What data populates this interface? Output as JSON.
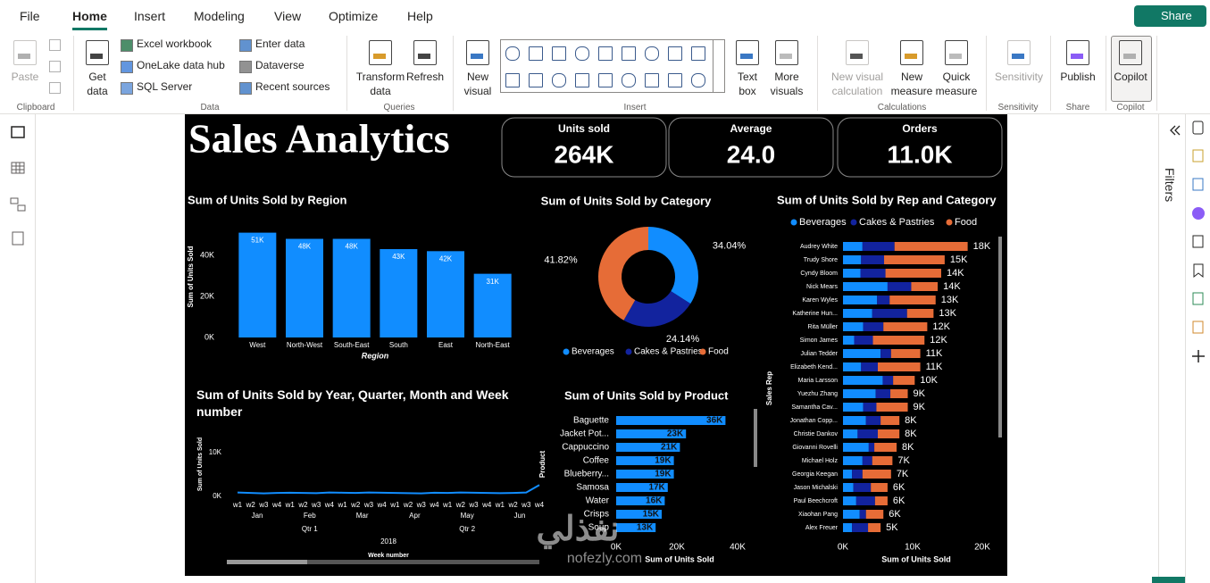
{
  "menu": {
    "tabs": [
      "File",
      "Home",
      "Insert",
      "Modeling",
      "View",
      "Optimize",
      "Help"
    ],
    "share": "Share"
  },
  "ribbon": {
    "groups": [
      {
        "name": "Clipboard",
        "buttons": [
          "Paste"
        ]
      },
      {
        "name": "Data",
        "buttons": [
          "Get data",
          "Excel workbook",
          "OneLake data hub",
          "SQL Server",
          "Enter data",
          "Dataverse",
          "Recent sources"
        ]
      },
      {
        "name": "Queries",
        "buttons": [
          "Transform data",
          "Refresh"
        ]
      },
      {
        "name": "Insert",
        "buttons": [
          "New visual",
          "Text box",
          "More visuals"
        ]
      },
      {
        "name": "Calculations",
        "buttons": [
          "New visual calculation",
          "New measure",
          "Quick measure"
        ]
      },
      {
        "name": "Sensitivity",
        "buttons": [
          "Sensitivity"
        ]
      },
      {
        "name": "Share",
        "buttons": [
          "Publish"
        ]
      },
      {
        "name": "Copilot",
        "buttons": [
          "Copilot"
        ]
      }
    ]
  },
  "filters_pane": {
    "label": "Filters"
  },
  "report": {
    "title": "Sales Analytics",
    "cards": [
      {
        "label": "Units sold",
        "value": 264000,
        "value_label": "264K"
      },
      {
        "label": "Average",
        "value": 24.0,
        "value_label": "24.0"
      },
      {
        "label": "Orders",
        "value": 11000,
        "value_label": "11.0K"
      }
    ],
    "charts": [
      {
        "type": "bar",
        "title": "Sum of Units Sold by Region",
        "x_label": "Region",
        "y_label": "Sum of Units Sold",
        "categories": [
          "West",
          "North-West",
          "South-East",
          "South",
          "East",
          "North-East"
        ],
        "values": [
          51000,
          48000,
          48000,
          43000,
          42000,
          31000
        ],
        "value_labels": [
          "51K",
          "48K",
          "48K",
          "43K",
          "42K",
          "31K"
        ],
        "color": "#118DFF",
        "ylim": [
          0,
          53000
        ],
        "yticks": [
          {
            "value": 0,
            "label": "0K"
          },
          {
            "value": 20000,
            "label": "20K"
          },
          {
            "value": 40000,
            "label": "40K"
          }
        ]
      },
      {
        "type": "donut",
        "title": "Sum of Units Sold by Category",
        "categories": [
          "Beverages",
          "Cakes & Pastries",
          "Food"
        ],
        "values": [
          34.04,
          24.14,
          41.82
        ],
        "value_labels": [
          "34.04%",
          "24.14%",
          "41.82%"
        ],
        "colors": [
          "#118DFF",
          "#12239E",
          "#E66C37"
        ]
      },
      {
        "type": "line",
        "title": "Sum of Units Sold by Year, Quarter, Month and Week number",
        "x_label": "Week number",
        "y_label": "Sum of Units Sold",
        "categories": [
          "w1",
          "w2",
          "w3",
          "w4",
          "w1",
          "w2",
          "w3",
          "w4",
          "w1",
          "w2",
          "w3",
          "w4",
          "w1",
          "w2",
          "w3",
          "w4",
          "w1",
          "w2",
          "w3",
          "w4",
          "w1",
          "w2",
          "w3",
          "w4"
        ],
        "months": [
          "Jan",
          "Feb",
          "Mar",
          "Apr",
          "May",
          "Jun"
        ],
        "quarters": [
          "Qtr 1",
          "Qtr 2"
        ],
        "year": "2018",
        "values": [
          900,
          800,
          700,
          800,
          850,
          800,
          750,
          900,
          850,
          800,
          900,
          850,
          800,
          750,
          700,
          850,
          800,
          900,
          850,
          800,
          750,
          800,
          900,
          2600
        ],
        "color": "#118DFF",
        "ylim": [
          0,
          13500
        ],
        "yticks": [
          {
            "value": 0,
            "label": "0K"
          },
          {
            "value": 10000,
            "label": "10K"
          }
        ]
      },
      {
        "type": "hbar",
        "title": "Sum of Units Sold by Product",
        "x_label": "Sum of Units Sold",
        "y_label": "Product",
        "categories": [
          "Baguette",
          "Jacket Pot...",
          "Cappuccino",
          "Coffee",
          "Blueberry...",
          "Samosa",
          "Water",
          "Crisps",
          "Soup"
        ],
        "values": [
          36000,
          23000,
          21000,
          19000,
          19000,
          17000,
          16000,
          15000,
          13000
        ],
        "value_labels": [
          "36K",
          "23K",
          "21K",
          "19K",
          "19K",
          "17K",
          "16K",
          "15K",
          "13K"
        ],
        "color": "#118DFF",
        "xlim": [
          0,
          40000
        ],
        "xticks": [
          {
            "value": 0,
            "label": "0K"
          },
          {
            "value": 20000,
            "label": "20K"
          },
          {
            "value": 40000,
            "label": "40K"
          }
        ]
      },
      {
        "type": "stacked_hbar",
        "title": "Sum of Units Sold by Rep and Category",
        "x_label": "Sum of Units Sold",
        "y_label": "Sales Rep",
        "categories": [
          "Audrey White",
          "Trudy Shore",
          "Cyndy Bloom",
          "Nick Mears",
          "Karen Wyles",
          "Katherine Hun...",
          "Rita Müller",
          "Simon James",
          "Julian Tedder",
          "Elizabeth Kend...",
          "Maria Larsson",
          "Yuezhu Zhang",
          "Samantha Cav...",
          "Jonathan Copp...",
          "Christie Dankov",
          "Giovanni Rovelli",
          "Michael Holz",
          "Georgia Keegan",
          "Jason Michalski",
          "Paul Beechcroft",
          "Xiaohan Pang",
          "Alex Freuer"
        ],
        "series": [
          {
            "name": "Beverages",
            "color": "#118DFF",
            "values": [
              2800,
              2600,
              2500,
              6400,
              4900,
              4200,
              2900,
              1600,
              5400,
              2600,
              5700,
              4700,
              2900,
              3300,
              2100,
              3700,
              2800,
              1300,
              1500,
              1900,
              2400,
              1300
            ]
          },
          {
            "name": "Cakes & Pastries",
            "color": "#12239E",
            "values": [
              4600,
              3300,
              3600,
              3400,
              1800,
              5000,
              2900,
              2700,
              1500,
              2400,
              1500,
              2100,
              1900,
              2100,
              2900,
              800,
              1400,
              1500,
              2500,
              2700,
              900,
              2300
            ]
          },
          {
            "name": "Food",
            "color": "#E66C37",
            "values": [
              10500,
              8700,
              8000,
              3800,
              6600,
              3800,
              6300,
              7400,
              4200,
              6100,
              3100,
              2500,
              4500,
              2700,
              3100,
              3200,
              2900,
              4100,
              2400,
              1800,
              2500,
              1800
            ]
          }
        ],
        "totals": [
          17900,
          14600,
          14100,
          13600,
          13300,
          13000,
          12100,
          11700,
          11100,
          11100,
          10300,
          9300,
          9300,
          8100,
          8100,
          7700,
          7100,
          6900,
          6400,
          6400,
          5800,
          5400
        ],
        "total_labels": [
          "18K",
          "15K",
          "14K",
          "14K",
          "13K",
          "13K",
          "12K",
          "12K",
          "11K",
          "11K",
          "10K",
          "9K",
          "9K",
          "8K",
          "8K",
          "8K",
          "7K",
          "7K",
          "6K",
          "6K",
          "6K",
          "5K"
        ],
        "xlim": [
          0,
          20000
        ],
        "xticks": [
          {
            "value": 0,
            "label": "0K"
          },
          {
            "value": 10000,
            "label": "10K"
          },
          {
            "value": 20000,
            "label": "20K"
          }
        ]
      }
    ],
    "watermark": {
      "text": "نفذلي",
      "url": "nofezly.com"
    }
  }
}
